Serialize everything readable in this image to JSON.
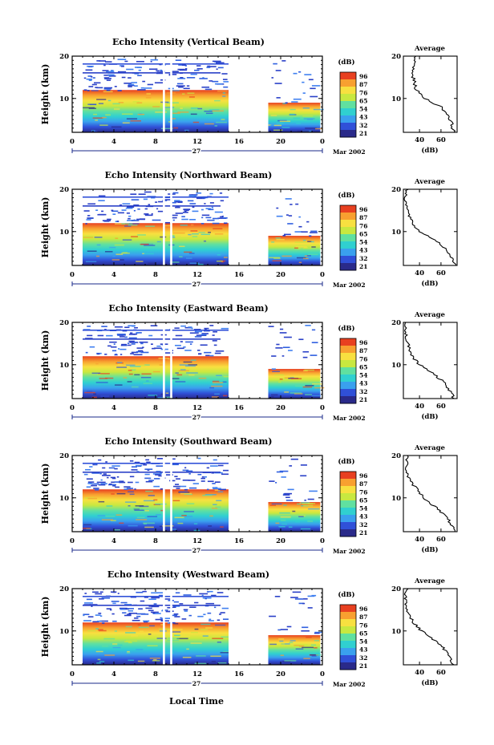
{
  "figure": {
    "xlabel": "Local Time",
    "day_label": "27",
    "date_label": "Mar 2002",
    "colorbar_unit": "(dB)",
    "colorbar_ticks": [
      "96",
      "87",
      "76",
      "65",
      "54",
      "43",
      "32",
      "21"
    ],
    "average_title": "Average",
    "average_xlabel": "(dB)",
    "average_xticks": [
      "40",
      "60"
    ],
    "colors": {
      "scale": [
        "#2a2a8a",
        "#3050d8",
        "#3aa0ee",
        "#30d0d0",
        "#60e0a0",
        "#c8e840",
        "#f8e040",
        "#f8a030",
        "#e84020"
      ]
    }
  },
  "chart_data": [
    {
      "type": "heatmap",
      "title": "Echo Intensity (Vertical Beam)",
      "ylabel": "Height (km)",
      "xticks": [
        "0",
        "4",
        "8",
        "12",
        "16",
        "20",
        "0"
      ],
      "yticks": [
        "20",
        "10"
      ],
      "xlim": [
        0,
        24
      ],
      "ylim": [
        2,
        20
      ],
      "data_gaps_hours": [
        [
          8.7,
          8.9
        ],
        [
          9.4,
          9.6
        ],
        [
          15,
          18.8
        ]
      ],
      "data_segments_hours": [
        [
          1,
          15
        ],
        [
          18.8,
          23.8
        ]
      ],
      "average_profile": {
        "height_km": [
          20,
          18,
          16,
          14,
          12,
          10,
          8,
          6,
          4,
          2
        ],
        "value_db": [
          36,
          35,
          33,
          35,
          37,
          45,
          60,
          67,
          70,
          72
        ]
      }
    },
    {
      "type": "heatmap",
      "title": "Echo Intensity (Northward Beam)",
      "ylabel": "Height (km)",
      "xticks": [
        "0",
        "4",
        "8",
        "12",
        "16",
        "20",
        "0"
      ],
      "yticks": [
        "20",
        "10"
      ],
      "xlim": [
        0,
        24
      ],
      "ylim": [
        2,
        20
      ],
      "data_gaps_hours": [
        [
          8.7,
          8.9
        ],
        [
          9.4,
          9.6
        ],
        [
          15,
          18.8
        ]
      ],
      "data_segments_hours": [
        [
          1,
          15
        ],
        [
          18.8,
          23.8
        ]
      ],
      "average_profile": {
        "height_km": [
          20,
          18,
          16,
          14,
          12,
          10,
          8,
          6,
          4,
          2
        ],
        "value_db": [
          28,
          27,
          28,
          30,
          33,
          40,
          55,
          64,
          70,
          74
        ]
      }
    },
    {
      "type": "heatmap",
      "title": "Echo Intensity (Eastward Beam)",
      "ylabel": "Height (km)",
      "xticks": [
        "0",
        "4",
        "8",
        "12",
        "16",
        "20",
        "0"
      ],
      "yticks": [
        "20",
        "10"
      ],
      "xlim": [
        0,
        24
      ],
      "ylim": [
        2,
        20
      ],
      "data_gaps_hours": [
        [
          8.7,
          8.9
        ],
        [
          9.4,
          9.6
        ],
        [
          15,
          18.8
        ]
      ],
      "data_segments_hours": [
        [
          1,
          15
        ],
        [
          18.8,
          23.8
        ]
      ],
      "average_profile": {
        "height_km": [
          20,
          18,
          16,
          14,
          12,
          10,
          8,
          6,
          4,
          2
        ],
        "value_db": [
          28,
          27,
          28,
          30,
          33,
          40,
          52,
          62,
          68,
          72
        ]
      }
    },
    {
      "type": "heatmap",
      "title": "Echo Intensity (Southward Beam)",
      "ylabel": "Height (km)",
      "xticks": [
        "0",
        "4",
        "8",
        "12",
        "16",
        "20",
        "0"
      ],
      "yticks": [
        "20",
        "10"
      ],
      "xlim": [
        0,
        24
      ],
      "ylim": [
        2,
        20
      ],
      "data_gaps_hours": [
        [
          8.7,
          8.9
        ],
        [
          9.4,
          9.6
        ],
        [
          15,
          18.8
        ]
      ],
      "data_segments_hours": [
        [
          1,
          15
        ],
        [
          18.8,
          23.8
        ]
      ],
      "average_profile": {
        "height_km": [
          20,
          18,
          16,
          14,
          12,
          10,
          8,
          6,
          4,
          2
        ],
        "value_db": [
          29,
          28,
          28,
          31,
          38,
          44,
          54,
          63,
          69,
          73
        ]
      }
    },
    {
      "type": "heatmap",
      "title": "Echo Intensity (Westward Beam)",
      "ylabel": "Height (km)",
      "xticks": [
        "0",
        "4",
        "8",
        "12",
        "16",
        "20",
        "0"
      ],
      "yticks": [
        "20",
        "10"
      ],
      "xlim": [
        0,
        24
      ],
      "ylim": [
        2,
        20
      ],
      "data_gaps_hours": [
        [
          8.7,
          8.9
        ],
        [
          9.4,
          9.6
        ],
        [
          15,
          18.8
        ]
      ],
      "data_segments_hours": [
        [
          1,
          15
        ],
        [
          18.8,
          23.8
        ]
      ],
      "average_profile": {
        "height_km": [
          20,
          18,
          16,
          14,
          12,
          10,
          8,
          6,
          4,
          2
        ],
        "value_db": [
          28,
          27,
          28,
          30,
          34,
          42,
          53,
          62,
          68,
          72
        ]
      }
    }
  ]
}
